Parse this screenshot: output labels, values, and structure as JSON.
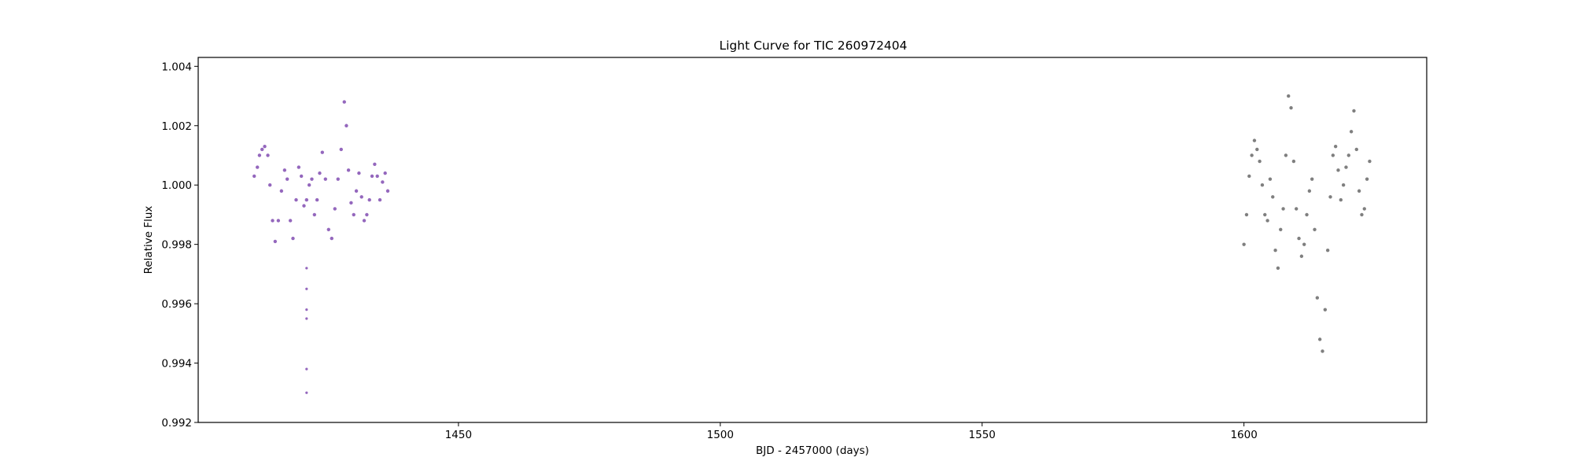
{
  "chart_data": {
    "type": "scatter",
    "title": "Light Curve for TIC 260972404",
    "xlabel": "BJD - 2457000 (days)",
    "ylabel": "Relative Flux",
    "xlim": [
      1400.3,
      1634.9
    ],
    "ylim": [
      0.992,
      1.0043
    ],
    "xticks": [
      1450,
      1500,
      1550,
      1600
    ],
    "yticks": [
      0.992,
      0.994,
      0.996,
      0.998,
      1.0,
      1.002,
      1.004
    ],
    "ytick_labels": [
      "0.992",
      "0.994",
      "0.996",
      "0.998",
      "1.000",
      "1.002",
      "1.004"
    ],
    "grid": false,
    "series": [
      {
        "color": "#9467bd",
        "x": [
          1411.0,
          1411.6,
          1412.0,
          1412.5,
          1413.0,
          1413.6,
          1414.0,
          1414.5,
          1415.0,
          1415.6,
          1416.2,
          1416.8,
          1417.3,
          1417.9,
          1418.4,
          1419.0,
          1419.5,
          1420.0,
          1420.5,
          1421.0,
          1421.5,
          1422.0,
          1422.5,
          1423.0,
          1423.5,
          1424.0,
          1424.6,
          1425.2,
          1425.8,
          1426.4,
          1427.0,
          1427.6,
          1428.2,
          1428.6,
          1429.0,
          1429.5,
          1430.0,
          1430.5,
          1431.0,
          1431.5,
          1432.0,
          1432.5,
          1433.0,
          1433.5,
          1434.0,
          1434.5,
          1435.0,
          1435.5,
          1436.0,
          1436.5
        ],
        "y": [
          1.0003,
          1.0006,
          1.001,
          1.0012,
          1.0013,
          1.001,
          1.0,
          0.9988,
          0.9981,
          0.9988,
          0.9998,
          1.0005,
          1.0002,
          0.9988,
          0.9982,
          0.9995,
          1.0006,
          1.0003,
          0.9993,
          0.9995,
          1.0,
          1.0002,
          0.999,
          0.9995,
          1.0004,
          1.0011,
          1.0002,
          0.9985,
          0.9982,
          0.9992,
          1.0002,
          1.0012,
          1.0028,
          1.002,
          1.0005,
          0.9994,
          0.999,
          0.9998,
          1.0004,
          0.9996,
          0.9988,
          0.999,
          0.9995,
          1.0003,
          1.0007,
          1.0003,
          0.9995,
          1.0001,
          1.0004,
          0.9998
        ]
      },
      {
        "color": "#7f7f7f",
        "x": [
          1600.0,
          1600.5,
          1601.0,
          1601.5,
          1602.0,
          1602.5,
          1603.0,
          1603.5,
          1604.0,
          1604.5,
          1605.0,
          1605.5,
          1606.0,
          1606.5,
          1607.0,
          1607.5,
          1608.0,
          1608.5,
          1609.0,
          1609.5,
          1610.0,
          1610.5,
          1611.0,
          1611.5,
          1612.0,
          1612.5,
          1613.0,
          1613.5,
          1614.0,
          1614.5,
          1615.0,
          1615.5,
          1616.0,
          1616.5,
          1617.0,
          1617.5,
          1618.0,
          1618.5,
          1619.0,
          1619.5,
          1620.0,
          1620.5,
          1621.0,
          1621.5,
          1622.0,
          1622.5,
          1623.0,
          1623.5,
          1624.0
        ],
        "y": [
          0.998,
          0.999,
          1.0003,
          1.001,
          1.0015,
          1.0012,
          1.0008,
          1.0,
          0.999,
          0.9988,
          1.0002,
          0.9996,
          0.9978,
          0.9972,
          0.9985,
          0.9992,
          1.001,
          1.003,
          1.0026,
          1.0008,
          0.9992,
          0.9982,
          0.9976,
          0.998,
          0.999,
          0.9998,
          1.0002,
          0.9985,
          0.9962,
          0.9948,
          0.9944,
          0.9958,
          0.9978,
          0.9996,
          1.001,
          1.0013,
          1.0005,
          0.9995,
          1.0,
          1.0006,
          1.001,
          1.0018,
          1.0025,
          1.0012,
          0.9998,
          0.999,
          0.9992,
          1.0002,
          1.0008
        ]
      }
    ],
    "outliers": {
      "color": "#9467bd",
      "x": [
        1421.0,
        1421.0,
        1421.0,
        1421.0,
        1421.0,
        1421.0
      ],
      "y": [
        0.993,
        0.9938,
        0.9955,
        0.9958,
        0.9965,
        0.9972
      ]
    }
  }
}
